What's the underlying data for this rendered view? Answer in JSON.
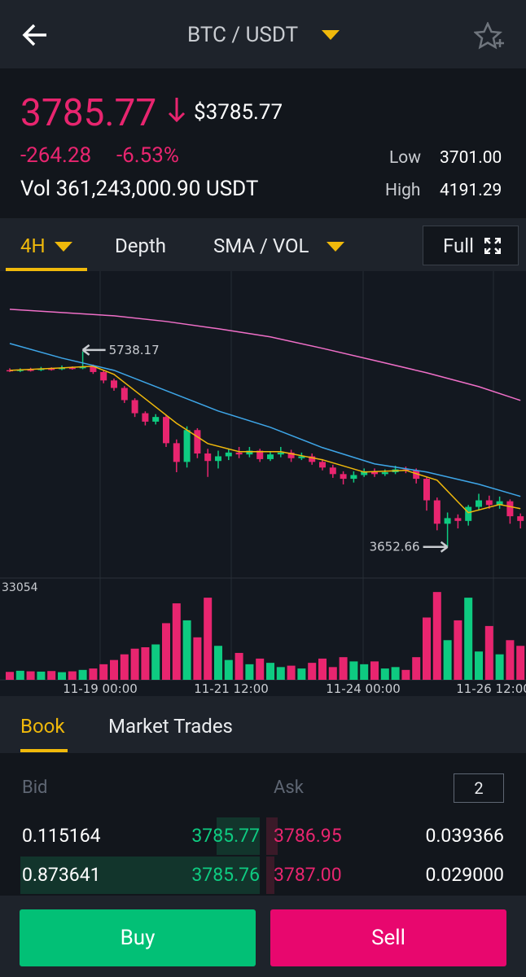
{
  "header": {
    "title": "BTC / USDT"
  },
  "ticker": {
    "price": "3785.77",
    "usd": "$3785.77",
    "change": "-264.28",
    "change_pct": "-6.53%",
    "volume": "Vol 361,243,000.90 USDT",
    "low_label": "Low",
    "low": "3701.00",
    "high_label": "High",
    "high": "4191.29"
  },
  "tabs": [
    "4H",
    "Depth",
    "SMA / VOL"
  ],
  "full": "Full",
  "chart": {
    "ylim": [
      3320,
      6580
    ],
    "vlim": [
      0,
      33054
    ],
    "up_color": "#0ecb81",
    "down_color": "#e8256f",
    "candles": [
      {
        "o": 5540,
        "c": 5530,
        "h": 5560,
        "l": 5520
      },
      {
        "o": 5530,
        "c": 5545,
        "h": 5560,
        "l": 5520
      },
      {
        "o": 5545,
        "c": 5540,
        "h": 5565,
        "l": 5525
      },
      {
        "o": 5540,
        "c": 5555,
        "h": 5575,
        "l": 5530
      },
      {
        "o": 5555,
        "c": 5550,
        "h": 5570,
        "l": 5535
      },
      {
        "o": 5550,
        "c": 5565,
        "h": 5590,
        "l": 5540
      },
      {
        "o": 5565,
        "c": 5560,
        "h": 5580,
        "l": 5545
      },
      {
        "o": 5560,
        "c": 5580,
        "h": 5738.17,
        "l": 5550
      },
      {
        "o": 5580,
        "c": 5520,
        "h": 5600,
        "l": 5500
      },
      {
        "o": 5520,
        "c": 5430,
        "h": 5540,
        "l": 5400
      },
      {
        "o": 5430,
        "c": 5350,
        "h": 5450,
        "l": 5320
      },
      {
        "o": 5350,
        "c": 5220,
        "h": 5370,
        "l": 5190
      },
      {
        "o": 5220,
        "c": 5080,
        "h": 5240,
        "l": 5040
      },
      {
        "o": 5080,
        "c": 4990,
        "h": 5100,
        "l": 4950
      },
      {
        "o": 4990,
        "c": 5040,
        "h": 5070,
        "l": 4960
      },
      {
        "o": 5040,
        "c": 4760,
        "h": 5060,
        "l": 4720
      },
      {
        "o": 4760,
        "c": 4560,
        "h": 4800,
        "l": 4450
      },
      {
        "o": 4560,
        "c": 4900,
        "h": 4940,
        "l": 4500
      },
      {
        "o": 4900,
        "c": 4650,
        "h": 4920,
        "l": 4600
      },
      {
        "o": 4650,
        "c": 4570,
        "h": 4700,
        "l": 4400
      },
      {
        "o": 4570,
        "c": 4620,
        "h": 4680,
        "l": 4490
      },
      {
        "o": 4620,
        "c": 4660,
        "h": 4700,
        "l": 4580
      },
      {
        "o": 4660,
        "c": 4640,
        "h": 4720,
        "l": 4600
      },
      {
        "o": 4640,
        "c": 4680,
        "h": 4720,
        "l": 4610
      },
      {
        "o": 4680,
        "c": 4590,
        "h": 4700,
        "l": 4560
      },
      {
        "o": 4590,
        "c": 4640,
        "h": 4670,
        "l": 4570
      },
      {
        "o": 4640,
        "c": 4660,
        "h": 4720,
        "l": 4610
      },
      {
        "o": 4660,
        "c": 4600,
        "h": 4690,
        "l": 4560
      },
      {
        "o": 4600,
        "c": 4620,
        "h": 4660,
        "l": 4580
      },
      {
        "o": 4620,
        "c": 4560,
        "h": 4650,
        "l": 4530
      },
      {
        "o": 4560,
        "c": 4500,
        "h": 4590,
        "l": 4470
      },
      {
        "o": 4500,
        "c": 4430,
        "h": 4530,
        "l": 4390
      },
      {
        "o": 4430,
        "c": 4380,
        "h": 4460,
        "l": 4320
      },
      {
        "o": 4380,
        "c": 4420,
        "h": 4460,
        "l": 4340
      },
      {
        "o": 4420,
        "c": 4460,
        "h": 4490,
        "l": 4400
      },
      {
        "o": 4460,
        "c": 4430,
        "h": 4490,
        "l": 4400
      },
      {
        "o": 4430,
        "c": 4450,
        "h": 4480,
        "l": 4410
      },
      {
        "o": 4450,
        "c": 4480,
        "h": 4520,
        "l": 4430
      },
      {
        "o": 4480,
        "c": 4470,
        "h": 4510,
        "l": 4440
      },
      {
        "o": 4470,
        "c": 4380,
        "h": 4490,
        "l": 4330
      },
      {
        "o": 4380,
        "c": 4150,
        "h": 4400,
        "l": 4040
      },
      {
        "o": 4150,
        "c": 3900,
        "h": 4180,
        "l": 3830
      },
      {
        "o": 3900,
        "c": 3960,
        "h": 4020,
        "l": 3652.66
      },
      {
        "o": 3960,
        "c": 3930,
        "h": 4000,
        "l": 3850
      },
      {
        "o": 3930,
        "c": 4080,
        "h": 4100,
        "l": 3880
      },
      {
        "o": 4080,
        "c": 4150,
        "h": 4220,
        "l": 4040
      },
      {
        "o": 4150,
        "c": 4100,
        "h": 4200,
        "l": 4060
      },
      {
        "o": 4100,
        "c": 4140,
        "h": 4190,
        "l": 4060
      },
      {
        "o": 4140,
        "c": 3980,
        "h": 4160,
        "l": 3900
      },
      {
        "o": 3980,
        "c": 3930,
        "h": 4010,
        "l": 3850
      }
    ],
    "volumes": [
      2800,
      3200,
      3000,
      2900,
      3100,
      2700,
      3000,
      3500,
      4000,
      5500,
      7000,
      9000,
      11000,
      11500,
      12500,
      20000,
      27000,
      21000,
      15000,
      29000,
      12000,
      7000,
      9500,
      5500,
      7500,
      6000,
      4500,
      5000,
      4000,
      6000,
      7500,
      4500,
      8000,
      6500,
      5500,
      6500,
      4000,
      4500,
      3500,
      8000,
      22000,
      31000,
      14000,
      21000,
      29000,
      10000,
      19000,
      9000,
      14000,
      12000
    ],
    "sma": [
      {
        "color": "#f0b90b",
        "x": [
          0,
          5,
          8,
          10,
          13,
          16,
          19,
          22,
          26,
          30,
          34,
          38,
          41,
          44,
          47,
          49
        ],
        "values": [
          5538,
          5564,
          5582,
          5495,
          5234,
          4973,
          4756,
          4670,
          4670,
          4583,
          4452,
          4470,
          4365,
          4018,
          4105,
          4061
        ]
      },
      {
        "color": "#3ea6e8",
        "x": [
          0,
          5,
          10,
          15,
          20,
          25,
          30,
          35,
          40,
          45,
          49
        ],
        "values": [
          5825,
          5669,
          5538,
          5321,
          5104,
          4930,
          4713,
          4539,
          4452,
          4322,
          4192
        ]
      },
      {
        "color": "#f06fc8",
        "x": [
          0,
          5,
          10,
          15,
          20,
          25,
          30,
          35,
          40,
          45,
          49
        ],
        "values": [
          6190,
          6155,
          6120,
          6060,
          5982,
          5895,
          5773,
          5643,
          5512,
          5364,
          5217
        ]
      }
    ],
    "x_labels": [
      "11-19 00:00",
      "11-21 12:00",
      "11-24 00:00",
      "11-26 12:00"
    ]
  },
  "book": {
    "tabs": [
      "Book",
      "Market Trades"
    ],
    "bid": "Bid",
    "ask": "Ask",
    "depth": "2",
    "rows": [
      {
        "bid_qty": "0.115164",
        "bid": "3785.77",
        "ask": "3786.95",
        "ask_qty": "0.039366"
      },
      {
        "bid_qty": "0.873641",
        "bid": "3785.76",
        "ask": "3787.00",
        "ask_qty": "0.029000"
      }
    ]
  },
  "actions": {
    "buy": "Buy",
    "sell": "Sell"
  }
}
